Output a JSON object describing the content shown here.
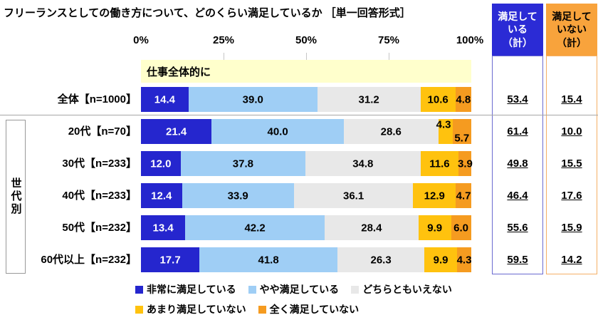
{
  "title": "フリーランスとしての働き方について、どのくらい満足しているか ［単一回答形式］",
  "axis": {
    "ticks": [
      "0%",
      "25%",
      "50%",
      "75%",
      "100%"
    ]
  },
  "band_label": "仕事全体的に",
  "group_label": "世代別",
  "summary_columns": {
    "satisfied": {
      "line1": "満足して",
      "line2": "いる",
      "line3": "（計）",
      "bg": "#2B2BD5",
      "border": "#6A6AD0",
      "text_color": "#FFFFFF"
    },
    "dissatisfied": {
      "line1": "満足して",
      "line2": "いない",
      "line3": "（計）",
      "bg": "#F8A33C",
      "border": "#F5B066",
      "text_color": "#000000"
    }
  },
  "legend": [
    "非常に満足している",
    "やや満足している",
    "どちらともいえない",
    "あまり満足していない",
    "全く満足していない"
  ],
  "chart_data": {
    "type": "bar",
    "orientation": "horizontal-stacked",
    "xlim": [
      0,
      100
    ],
    "x_ticks": [
      "0%",
      "25%",
      "50%",
      "75%",
      "100%"
    ],
    "grid": "off",
    "legend_position": "bottom",
    "categories": [
      "全体【n=1000】",
      "20代【n=70】",
      "30代【n=233】",
      "40代【n=233】",
      "50代【n=232】",
      "60代以上【n=232】"
    ],
    "series": [
      {
        "name": "非常に満足している",
        "color": "#2526CE",
        "text": "#FFFFFF",
        "values": [
          14.4,
          21.4,
          12.0,
          12.4,
          13.4,
          17.7
        ]
      },
      {
        "name": "やや満足している",
        "color": "#9FCEF5",
        "text": "#000000",
        "values": [
          39.0,
          40.0,
          37.8,
          33.9,
          42.2,
          41.8
        ]
      },
      {
        "name": "どちらともいえない",
        "color": "#E8E8E8",
        "text": "#000000",
        "values": [
          31.2,
          28.6,
          34.8,
          36.1,
          28.4,
          26.3
        ]
      },
      {
        "name": "あまり満足していない",
        "color": "#FFC20E",
        "text": "#000000",
        "values": [
          10.6,
          4.3,
          11.6,
          12.9,
          9.9,
          9.9
        ]
      },
      {
        "name": "全く満足していない",
        "color": "#F59B20",
        "text": "#000000",
        "values": [
          4.8,
          5.7,
          3.9,
          4.7,
          6.0,
          4.3
        ]
      }
    ],
    "label_offsets": [
      {
        "row": 1,
        "series": 3,
        "pos": "up"
      },
      {
        "row": 1,
        "series": 4,
        "pos": "down"
      }
    ],
    "totals": {
      "satisfied": [
        53.4,
        61.4,
        49.8,
        46.4,
        55.6,
        59.5
      ],
      "dissatisfied": [
        15.4,
        10.0,
        15.5,
        17.6,
        15.9,
        14.2
      ]
    }
  }
}
